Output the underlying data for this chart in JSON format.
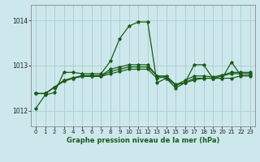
{
  "title": "Graphe pression niveau de la mer (hPa)",
  "background_color": "#cde8ec",
  "grid_color": "#aacccc",
  "line_color": "#1a5c1a",
  "xlim": [
    -0.5,
    23.5
  ],
  "ylim": [
    1011.65,
    1014.35
  ],
  "yticks": [
    1012,
    1013,
    1014
  ],
  "xticks": [
    0,
    1,
    2,
    3,
    4,
    5,
    6,
    7,
    8,
    9,
    10,
    11,
    12,
    13,
    14,
    15,
    16,
    17,
    18,
    19,
    20,
    21,
    22,
    23
  ],
  "series": [
    [
      1012.05,
      1012.35,
      1012.4,
      1012.85,
      1012.85,
      1012.82,
      1012.82,
      1012.82,
      1013.1,
      1013.6,
      1013.88,
      1013.97,
      1013.97,
      1012.62,
      1012.72,
      1012.5,
      1012.62,
      1013.02,
      1013.02,
      1012.72,
      1012.72,
      1013.08,
      1012.78,
      1012.78
    ],
    [
      1012.38,
      1012.38,
      1012.52,
      1012.65,
      1012.72,
      1012.76,
      1012.76,
      1012.76,
      1012.82,
      1012.87,
      1012.92,
      1012.92,
      1012.92,
      1012.72,
      1012.76,
      1012.58,
      1012.62,
      1012.68,
      1012.72,
      1012.72,
      1012.72,
      1012.72,
      1012.77,
      1012.77
    ],
    [
      1012.38,
      1012.38,
      1012.52,
      1012.67,
      1012.72,
      1012.77,
      1012.77,
      1012.77,
      1012.87,
      1012.92,
      1012.97,
      1012.97,
      1012.97,
      1012.77,
      1012.72,
      1012.57,
      1012.62,
      1012.72,
      1012.72,
      1012.72,
      1012.77,
      1012.82,
      1012.82,
      1012.82
    ],
    [
      1012.38,
      1012.38,
      1012.52,
      1012.67,
      1012.73,
      1012.78,
      1012.78,
      1012.78,
      1012.92,
      1012.97,
      1013.02,
      1013.02,
      1013.02,
      1012.77,
      1012.77,
      1012.57,
      1012.67,
      1012.77,
      1012.77,
      1012.75,
      1012.79,
      1012.85,
      1012.85,
      1012.85
    ]
  ]
}
